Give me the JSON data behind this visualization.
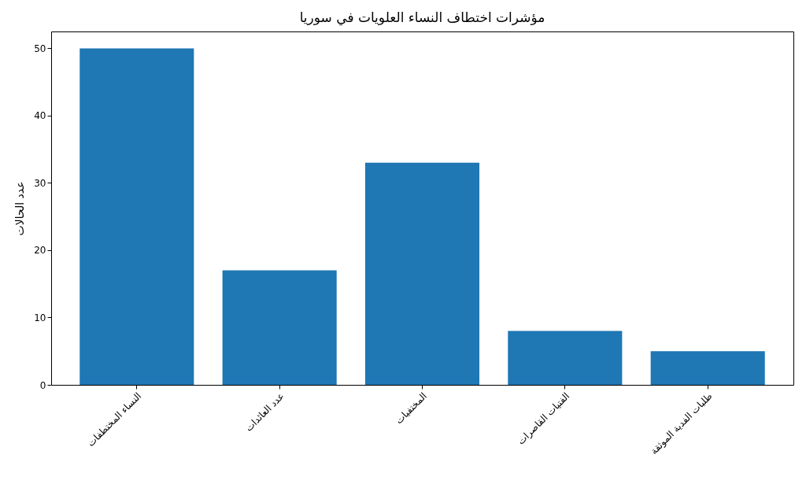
{
  "chart_data": {
    "type": "bar",
    "title": "مؤشرات اختطاف النساء العلويات في سوريا",
    "ylabel": "عدد الحالات",
    "categories": [
      "النساء المختطفات",
      "عدد العائدات",
      "المختفيات",
      "الفتيات القاصرات",
      "طلبات الفدية الموثقة"
    ],
    "values": [
      50,
      17,
      33,
      8,
      5
    ],
    "color": "#1f77b4",
    "ylim": [
      0,
      52.5
    ],
    "yticks": [
      0,
      10,
      20,
      30,
      40,
      50
    ],
    "grid": false
  }
}
